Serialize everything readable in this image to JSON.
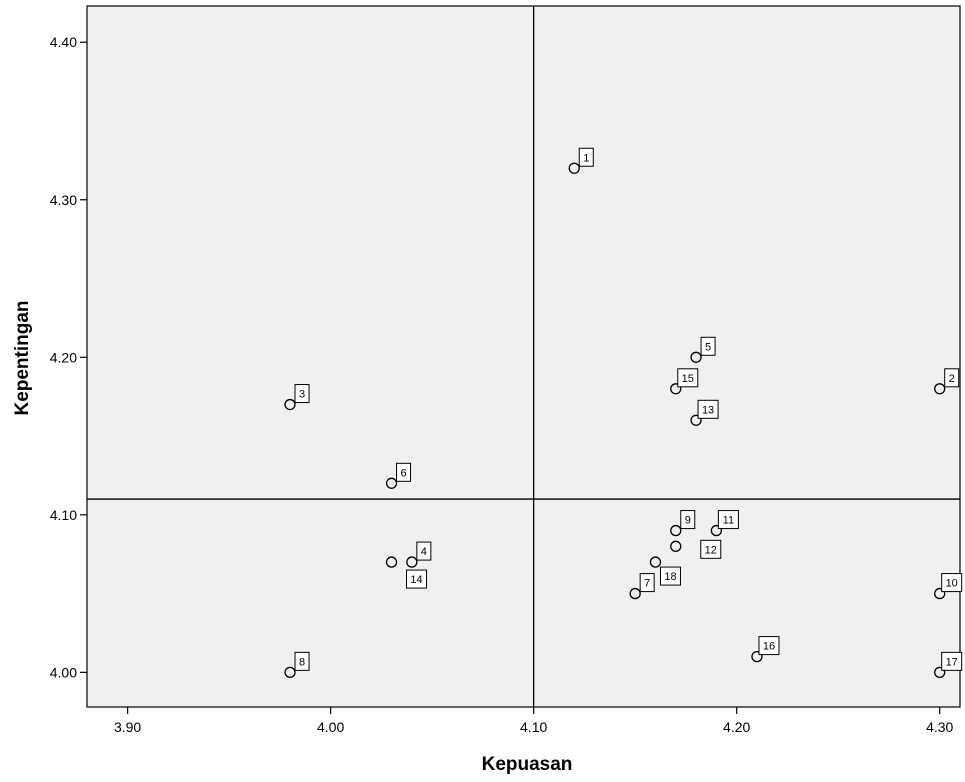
{
  "chart_data": {
    "type": "scatter",
    "title": "",
    "xlabel": "Kepuasan",
    "ylabel": "Kepentingan",
    "xlim": [
      3.88,
      4.31
    ],
    "ylim": [
      3.978,
      4.423
    ],
    "x_ticks": [
      {
        "value": 3.9,
        "label": "3.90"
      },
      {
        "value": 4.0,
        "label": "4.00"
      },
      {
        "value": 4.1,
        "label": "4.10"
      },
      {
        "value": 4.2,
        "label": "4.20"
      },
      {
        "value": 4.3,
        "label": "4.30"
      }
    ],
    "y_ticks": [
      {
        "value": 4.0,
        "label": "4.00"
      },
      {
        "value": 4.1,
        "label": "4.10"
      },
      {
        "value": 4.2,
        "label": "4.20"
      },
      {
        "value": 4.3,
        "label": "4.30"
      },
      {
        "value": 4.4,
        "label": "4.40"
      }
    ],
    "reference_lines": {
      "x": 4.1,
      "y": 4.11
    },
    "grid": false,
    "colors": {
      "plot_bg": "#f0f0f0",
      "marker": "#000000"
    },
    "points": [
      {
        "label": "1",
        "x": 4.12,
        "y": 4.32
      },
      {
        "label": "2",
        "x": 4.3,
        "y": 4.18
      },
      {
        "label": "3",
        "x": 3.98,
        "y": 4.17
      },
      {
        "label": "4",
        "x": 4.04,
        "y": 4.07
      },
      {
        "label": "5",
        "x": 4.18,
        "y": 4.2
      },
      {
        "label": "6",
        "x": 4.03,
        "y": 4.12
      },
      {
        "label": "7",
        "x": 4.15,
        "y": 4.05
      },
      {
        "label": "8",
        "x": 3.98,
        "y": 4.0
      },
      {
        "label": "9",
        "x": 4.17,
        "y": 4.09
      },
      {
        "label": "10",
        "x": 4.3,
        "y": 4.05
      },
      {
        "label": "11",
        "x": 4.19,
        "y": 4.09
      },
      {
        "label": "12",
        "x": 4.17,
        "y": 4.08
      },
      {
        "label": "13",
        "x": 4.18,
        "y": 4.16
      },
      {
        "label": "14",
        "x": 4.03,
        "y": 4.07
      },
      {
        "label": "15",
        "x": 4.17,
        "y": 4.18
      },
      {
        "label": "16",
        "x": 4.21,
        "y": 4.01
      },
      {
        "label": "17",
        "x": 4.3,
        "y": 4.0
      },
      {
        "label": "18",
        "x": 4.16,
        "y": 4.07
      }
    ]
  }
}
